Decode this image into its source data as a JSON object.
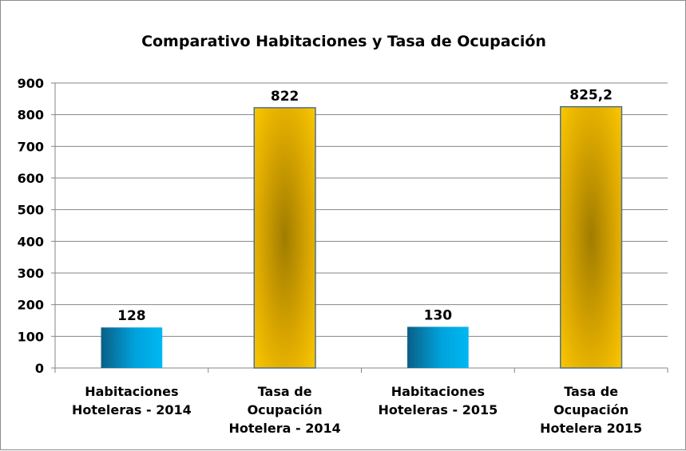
{
  "chart_data": {
    "type": "bar",
    "title": "Comparativo Habitaciones y Tasa de Ocupación",
    "categories": [
      [
        "Habitaciones",
        "Hoteleras - 2014"
      ],
      [
        "Tasa de",
        "Ocupación",
        "Hotelera - 2014"
      ],
      [
        "Habitaciones",
        "Hoteleras  - 2015"
      ],
      [
        "Tasa de",
        "Ocupación",
        "Hotelera 2015"
      ]
    ],
    "values": [
      128,
      822,
      130,
      825.2
    ],
    "data_labels": [
      "128",
      "822",
      "130",
      "825,2"
    ],
    "bar_styles": [
      "blue",
      "gold",
      "blue",
      "gold"
    ],
    "ylim": [
      0,
      900
    ],
    "yticks": [
      0,
      100,
      200,
      300,
      400,
      500,
      600,
      700,
      800,
      900
    ],
    "grid": true,
    "colors": {
      "blue_dark": "#0a5f86",
      "blue_light": "#00b4f0",
      "gold_light": "#ffcc00",
      "gold_dark": "#a88200",
      "gold_border": "#4f6f8a",
      "grid": "#868686"
    }
  }
}
